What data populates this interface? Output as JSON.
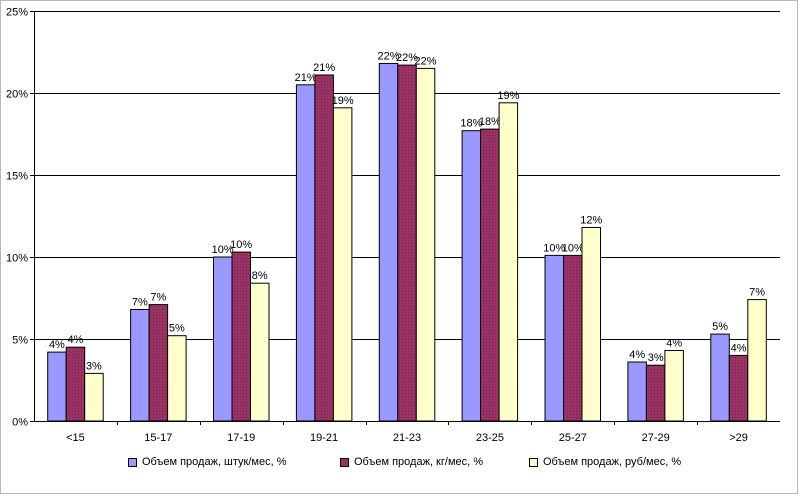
{
  "chart_data": {
    "type": "bar",
    "categories": [
      "<15",
      "15-17",
      "17-19",
      "19-21",
      "21-23",
      "23-25",
      "25-27",
      "27-29",
      ">29"
    ],
    "series": [
      {
        "name": "Объем продаж, штук/мес, %",
        "color": "#9999ff",
        "values": [
          4.2,
          6.8,
          10.0,
          20.5,
          21.8,
          17.7,
          10.1,
          3.6,
          5.3
        ],
        "labels": [
          "4%",
          "7%",
          "10%",
          "21%",
          "22%",
          "18%",
          "10%",
          "4%",
          "5%"
        ]
      },
      {
        "name": "Объем продаж, кг/мес, %",
        "color": "#993366",
        "values": [
          4.5,
          7.1,
          10.3,
          21.1,
          21.7,
          17.8,
          10.1,
          3.4,
          4.0
        ],
        "labels": [
          "4%",
          "7%",
          "10%",
          "21%",
          "22%",
          "18%",
          "10%",
          "3%",
          "4%"
        ]
      },
      {
        "name": "Объем продаж, руб/мес, %",
        "color": "#ffffcc",
        "values": [
          2.9,
          5.2,
          8.4,
          19.1,
          21.5,
          19.4,
          11.8,
          4.3,
          7.4
        ],
        "labels": [
          "3%",
          "5%",
          "8%",
          "19%",
          "22%",
          "19%",
          "12%",
          "4%",
          "7%"
        ]
      }
    ],
    "yticks": [
      "0%",
      "5%",
      "10%",
      "15%",
      "20%",
      "25%"
    ],
    "ylim": [
      0,
      25
    ],
    "grid": true,
    "legend_position": "bottom"
  }
}
